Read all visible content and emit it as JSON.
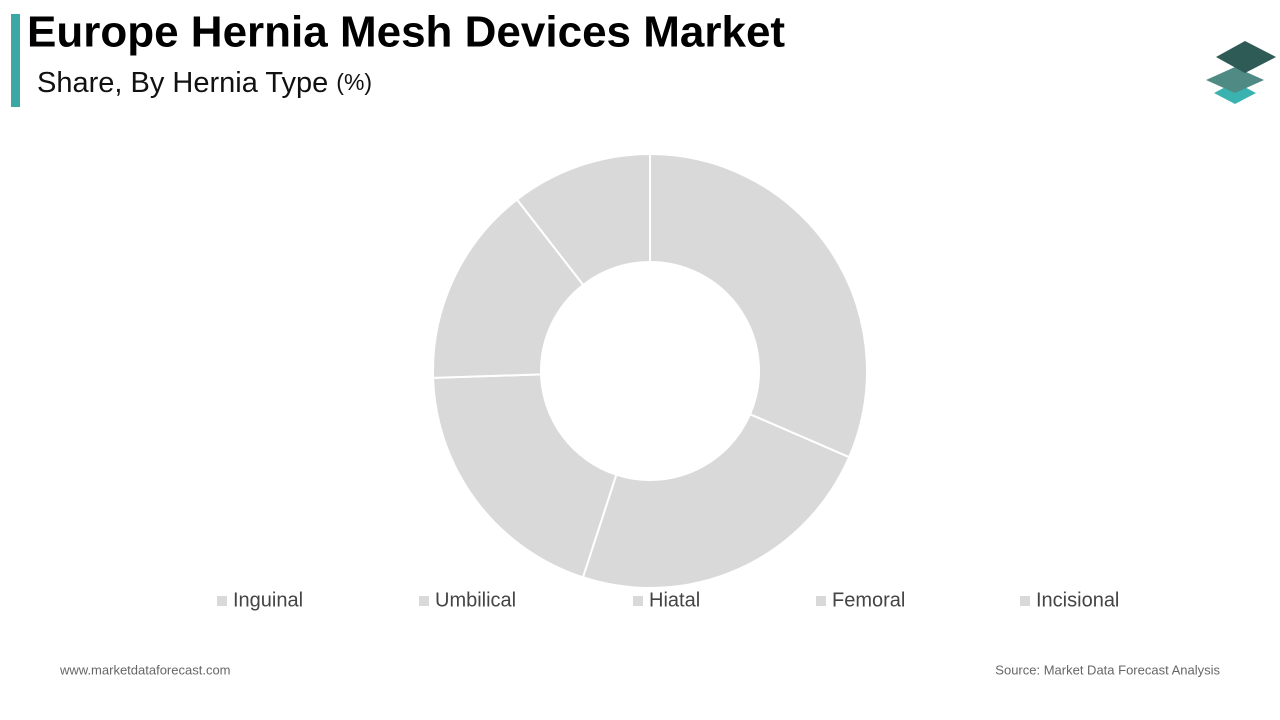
{
  "chart_data": {
    "type": "donut",
    "title": "Europe Hernia Mesh Devices Market",
    "subtitle": "Share, By Hernia Type",
    "unit": "(%)",
    "categories": [
      "Inguinal",
      "Umbilical",
      "Hiatal",
      "Femoral",
      "Incisional"
    ],
    "values": [
      31.5,
      23.5,
      19.5,
      15,
      10.5
    ],
    "colors": [
      "#d9d9d9",
      "#d9d9d9",
      "#d9d9d9",
      "#d9d9d9",
      "#d9d9d9"
    ],
    "legend": "bottom",
    "footer_left": "www.marketdataforecast.com",
    "footer_right": "Source: Market Data Forecast Analysis"
  }
}
